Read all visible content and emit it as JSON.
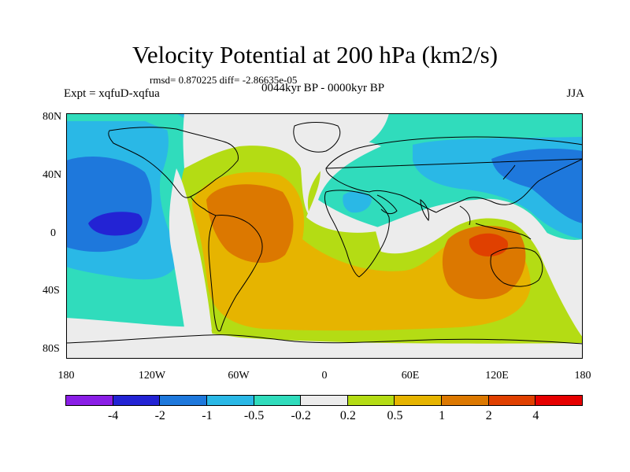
{
  "title": "Velocity Potential at 200 hPa (km2/s)",
  "stats": "rmsd= 0.870225 diff= -2.86635e-05",
  "expt": "Expt = xqfuD-xqfua",
  "period": "0044kyr BP - 0000kyr BP",
  "season": "JJA",
  "lat_labels": [
    "80N",
    "40N",
    "0",
    "40S",
    "80S"
  ],
  "lon_labels": [
    "180",
    "120W",
    "60W",
    "0",
    "60E",
    "120E",
    "180"
  ],
  "colorbar": {
    "colors": [
      "#8a1ee6",
      "#2323d4",
      "#1e78dc",
      "#2ab8e6",
      "#30dcbc",
      "#ececec",
      "#b4dc14",
      "#e6b400",
      "#dc7800",
      "#e04000",
      "#e60000"
    ],
    "labels": [
      "-4",
      "-2",
      "-1",
      "-0.5",
      "-0.2",
      "0.2",
      "0.5",
      "1",
      "2",
      "4"
    ]
  }
}
